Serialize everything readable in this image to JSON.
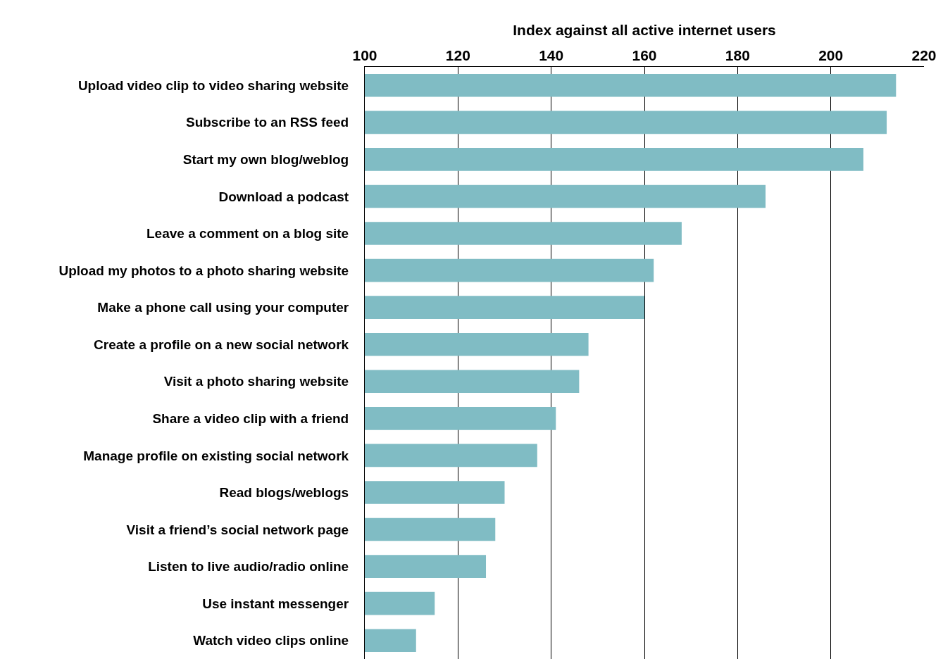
{
  "chart_data": {
    "type": "bar",
    "orientation": "horizontal",
    "xlabel": "Index against all active internet users",
    "categories": [
      "Upload video clip to video sharing website",
      "Subscribe to an RSS feed",
      "Start my own blog/weblog",
      "Download a podcast",
      "Leave a comment on a blog site",
      "Upload my photos to a photo sharing website",
      "Make a phone call using your computer",
      "Create a profile on a new social network",
      "Visit a photo sharing website",
      "Share a video clip with a friend",
      "Manage profile on existing social network",
      "Read blogs/weblogs",
      "Visit a friend’s social network page",
      "Listen to live audio/radio online",
      "Use instant messenger",
      "Watch video clips online"
    ],
    "values": [
      214,
      212,
      207,
      186,
      168,
      162,
      160,
      148,
      146,
      141,
      137,
      130,
      128,
      126,
      115,
      111
    ],
    "color": "#80bcc4",
    "xlim": [
      100,
      220
    ],
    "xticks": [
      100,
      120,
      140,
      160,
      180,
      200,
      220
    ],
    "grid": "x"
  }
}
